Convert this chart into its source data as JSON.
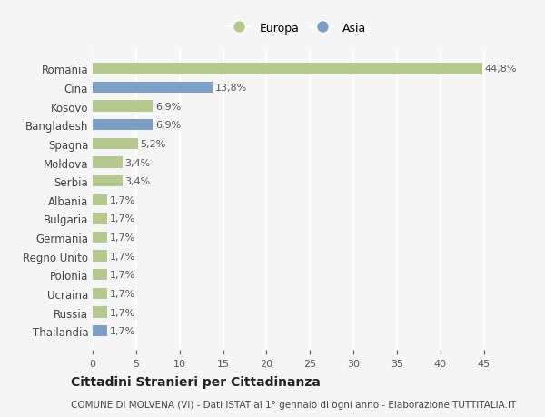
{
  "countries": [
    "Romania",
    "Cina",
    "Kosovo",
    "Bangladesh",
    "Spagna",
    "Moldova",
    "Serbia",
    "Albania",
    "Bulgaria",
    "Germania",
    "Regno Unito",
    "Polonia",
    "Ucraina",
    "Russia",
    "Thailandia"
  ],
  "values": [
    44.8,
    13.8,
    6.9,
    6.9,
    5.2,
    3.4,
    3.4,
    1.7,
    1.7,
    1.7,
    1.7,
    1.7,
    1.7,
    1.7,
    1.7
  ],
  "labels": [
    "44,8%",
    "13,8%",
    "6,9%",
    "6,9%",
    "5,2%",
    "3,4%",
    "3,4%",
    "1,7%",
    "1,7%",
    "1,7%",
    "1,7%",
    "1,7%",
    "1,7%",
    "1,7%",
    "1,7%"
  ],
  "continents": [
    "Europa",
    "Asia",
    "Europa",
    "Asia",
    "Europa",
    "Europa",
    "Europa",
    "Europa",
    "Europa",
    "Europa",
    "Europa",
    "Europa",
    "Europa",
    "Europa",
    "Asia"
  ],
  "europa_color": "#b5c98e",
  "asia_color": "#7b9fc7",
  "background_color": "#f5f5f5",
  "title": "Cittadini Stranieri per Cittadinanza",
  "subtitle": "COMUNE DI MOLVENA (VI) - Dati ISTAT al 1° gennaio di ogni anno - Elaborazione TUTTITALIA.IT",
  "xlim": [
    0,
    47
  ],
  "xticks": [
    0,
    5,
    10,
    15,
    20,
    25,
    30,
    35,
    40,
    45
  ],
  "legend_labels": [
    "Europa",
    "Asia"
  ],
  "grid_color": "#ffffff",
  "bar_height": 0.6
}
